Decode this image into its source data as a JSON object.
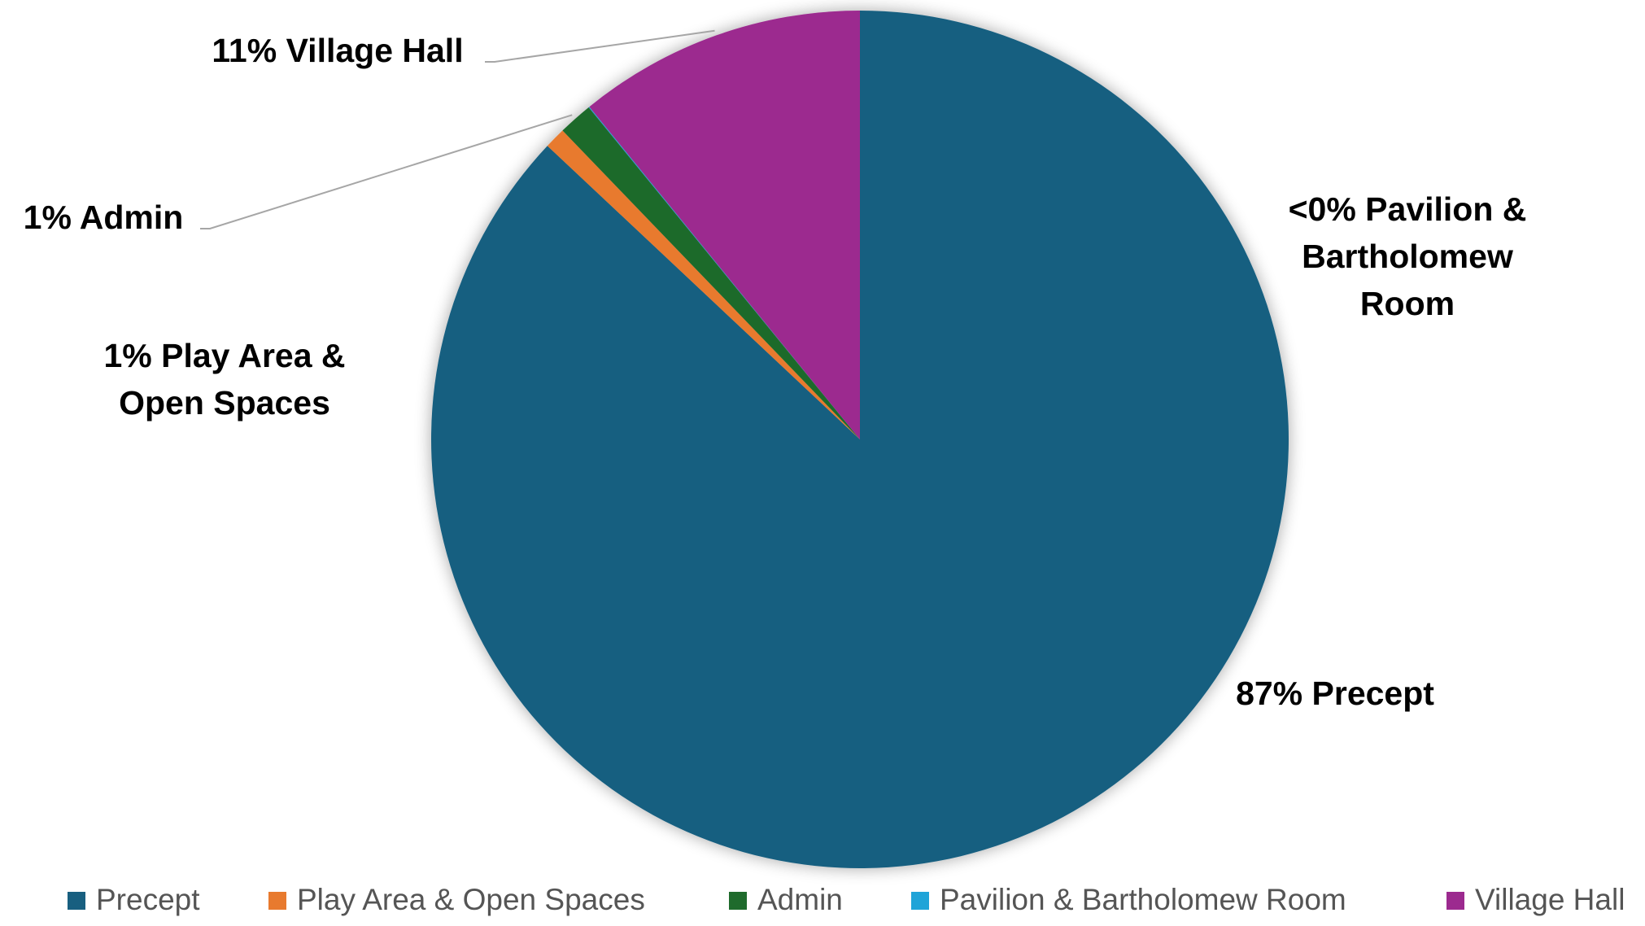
{
  "chart_data": {
    "type": "pie",
    "title": "",
    "start_angle_deg": 0,
    "direction": "clockwise",
    "categories": [
      "Precept",
      "Play Area & Open Spaces",
      "Admin",
      "Pavilion & Bartholomew Room",
      "Village Hall"
    ],
    "values": [
      87.0,
      0.8,
      1.3,
      0.03,
      10.87
    ],
    "colors": [
      "#185F80",
      "#E87A2E",
      "#1F6B2C",
      "#1FA4D8",
      "#9C2A8F"
    ],
    "data_labels": [
      [
        "87% Precept"
      ],
      [
        "1% Play Area &",
        "Open Spaces"
      ],
      [
        "1% Admin"
      ],
      [
        "<0% Pavilion &",
        "Bartholomew",
        "Room"
      ],
      [
        "11% Village Hall"
      ]
    ],
    "legend": {
      "position": "bottom",
      "entries": [
        "Precept",
        "Play Area & Open Spaces",
        "Admin",
        "Pavilion & Bartholomew Room",
        "Village Hall"
      ]
    }
  }
}
